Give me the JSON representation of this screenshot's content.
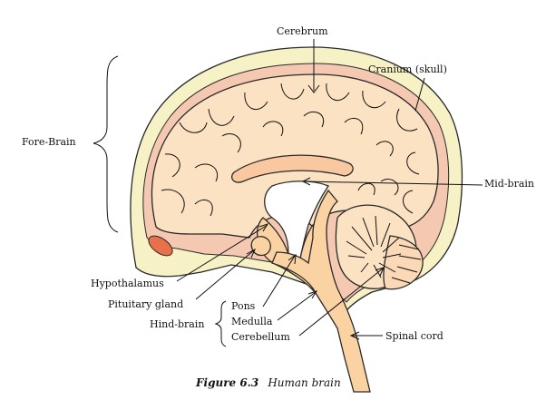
{
  "labels": {
    "cerebrum": "Cerebrum",
    "cranium": "Cranium (skull)",
    "fore_brain": "Fore-Brain",
    "mid_brain": "Mid-brain",
    "hypothalamus": "Hypothalamus",
    "pituitary_gland": "Pituitary gland",
    "hind_brain": "Hind-brain",
    "pons": "Pons",
    "medulla": "Medulla",
    "cerebellum": "Cerebellum",
    "spinal_cord": "Spinal cord"
  },
  "caption": {
    "figure_number": "Figure 6.3",
    "title": "Human brain"
  },
  "colors": {
    "skull": "#f7f1c6",
    "meninges": "#f5c8b2",
    "cerebrum": "#fbe2c2",
    "brainstem": "#fbd2a2",
    "corpus_callosum": "#fac8a0",
    "eye": "#e8704a",
    "outline": "#2a2a2a"
  }
}
